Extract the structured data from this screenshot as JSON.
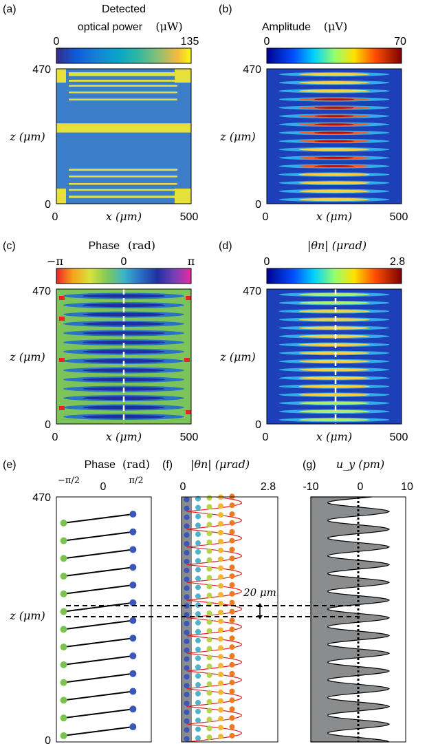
{
  "panels": {
    "a": {
      "tag": "(a)",
      "title1": "Detected",
      "title2": "optical power",
      "unit": "(μW)",
      "cmin": "0",
      "cmax": "135",
      "ytop": "470",
      "ybot": "0",
      "xl": "0",
      "xr": "500",
      "xlabel": "x (μm)",
      "ylabel": "z (μm)"
    },
    "b": {
      "tag": "(b)",
      "title": "Amplitude",
      "unit": "(μV)",
      "cmin": "0",
      "cmax": "70",
      "ytop": "470",
      "ybot": "0",
      "xl": "0",
      "xr": "500",
      "xlabel": "x (μm)",
      "ylabel": "z (μm)"
    },
    "c": {
      "tag": "(c)",
      "title": "Phase",
      "unit": "(rad)",
      "cmin": "−π",
      "cmid": "0",
      "cmax": "π",
      "ytop": "470",
      "ybot": "0",
      "xl": "0",
      "xr": "500",
      "xlabel": "x (μm)",
      "ylabel": "z (μm)"
    },
    "d": {
      "tag": "(d)",
      "title": "|θn| (μrad)",
      "cmin": "0",
      "cmax": "2.8",
      "ytop": "470",
      "ybot": "0",
      "xl": "0",
      "xr": "500",
      "xlabel": "x (μm)",
      "ylabel": "z (μm)"
    },
    "e": {
      "tag": "(e)",
      "title": "Phase",
      "unit": "(rad)",
      "ytop": "470",
      "ybot": "0",
      "ylabel": "z (μm)",
      "xticks": [
        "−π/2",
        "0",
        "π/2"
      ]
    },
    "f": {
      "tag": "(f)",
      "title": "|θn| (μrad)",
      "xticks": [
        "0",
        "2.8"
      ],
      "annotation": "20 μm"
    },
    "g": {
      "tag": "(g)",
      "title": "u_y (pm)",
      "xticks": [
        "-10",
        "0",
        "10"
      ]
    }
  },
  "chart_data": [
    {
      "type": "heatmap",
      "panel": "a",
      "title": "Detected optical power",
      "unit": "μW",
      "x_range": [
        0,
        500
      ],
      "y_range": [
        0,
        470
      ],
      "color_range": [
        0,
        135
      ],
      "bright_strips_z_um": [
        [
          445,
          458
        ],
        [
          425,
          432
        ],
        [
          408,
          414
        ],
        [
          385,
          391
        ],
        [
          360,
          366
        ],
        [
          248,
          280
        ],
        [
          115,
          122
        ],
        [
          92,
          98
        ],
        [
          66,
          72
        ],
        [
          45,
          51
        ],
        [
          20,
          28
        ]
      ]
    },
    {
      "type": "heatmap",
      "panel": "b",
      "title": "Amplitude",
      "unit": "μV",
      "x_range": [
        0,
        500
      ],
      "y_range": [
        0,
        470
      ],
      "color_range": [
        0,
        70
      ],
      "fringe_count": 16
    },
    {
      "type": "heatmap",
      "panel": "c",
      "title": "Phase",
      "unit": "rad",
      "x_range": [
        0,
        500
      ],
      "y_range": [
        0,
        470
      ],
      "color_range": [
        -3.1416,
        3.1416
      ],
      "cut_x_um": 250
    },
    {
      "type": "heatmap",
      "panel": "d",
      "title": "|θn|",
      "unit": "μrad",
      "x_range": [
        0,
        500
      ],
      "y_range": [
        0,
        470
      ],
      "color_range": [
        0,
        2.8
      ],
      "fringe_count": 16,
      "cut_x_um": 250
    },
    {
      "type": "scatter",
      "panel": "e",
      "title": "Phase",
      "unit": "rad",
      "x_range": [
        -1.9,
        2.4
      ],
      "y_range": [
        0,
        470
      ],
      "period_um": 34,
      "phase_low": -1.5708,
      "phase_high": 1.5708
    },
    {
      "type": "scatter",
      "panel": "f",
      "title": "|θn|",
      "unit": "μrad",
      "x_range": [
        0,
        2.8
      ],
      "y_range": [
        0,
        470
      ],
      "period_um": 34,
      "peak_value": 1.6,
      "annotation_gap_um": 20
    },
    {
      "type": "area",
      "panel": "g",
      "title": "u_y",
      "unit": "pm",
      "x_range": [
        -10,
        10
      ],
      "y_range": [
        0,
        470
      ],
      "amplitude_pm": 6.5,
      "period_um": 34
    }
  ],
  "colors": {
    "yellow": "#e6e03a",
    "blue": "#3b7dc8",
    "deep_blue": "#15259a",
    "green_bg": "#7cc35a",
    "grey_fill": "#8a8c8e",
    "red_line": "#e02020"
  }
}
